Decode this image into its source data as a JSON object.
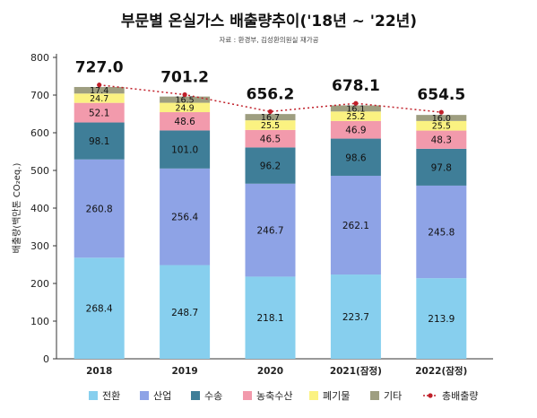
{
  "chart_data": {
    "type": "bar",
    "stacked": true,
    "title": "부문별 온실가스 배출량추이('18년 ~ '22년)",
    "source": "자료 : 환경부, 김성환의원실 재가공",
    "ylabel": "배출량(백만톤 CO₂eq.)",
    "xlabel": "",
    "ylim": [
      0,
      800
    ],
    "yticks": [
      0,
      100,
      200,
      300,
      400,
      500,
      600,
      700,
      800
    ],
    "grid": false,
    "legend_position": "bottom",
    "categories": [
      "2018",
      "2019",
      "2020",
      "2021(잠정)",
      "2022(잠정)"
    ],
    "series": [
      {
        "name": "전환",
        "color": "#87cfee",
        "values": [
          268.4,
          248.7,
          218.1,
          223.7,
          213.9
        ]
      },
      {
        "name": "산업",
        "color": "#8ea3e6",
        "values": [
          260.8,
          256.4,
          246.7,
          262.1,
          245.8
        ]
      },
      {
        "name": "수송",
        "color": "#3f7e98",
        "values": [
          98.1,
          101.0,
          96.2,
          98.6,
          97.8
        ]
      },
      {
        "name": "농축수산",
        "color": "#f29aac",
        "values": [
          52.1,
          48.6,
          46.5,
          46.9,
          48.3
        ]
      },
      {
        "name": "폐기물",
        "color": "#fbf281",
        "values": [
          24.7,
          24.9,
          25.5,
          25.2,
          25.5
        ]
      },
      {
        "name": "기타",
        "color": "#9e9e80",
        "values": [
          17.4,
          16.5,
          16.7,
          16.1,
          16.0
        ]
      }
    ],
    "value_labels": [
      [
        "268.4",
        "260.8",
        "98.1",
        "52.1",
        "24.7",
        "17.4"
      ],
      [
        "248.7",
        "256.4",
        "101.0",
        "48.6",
        "24.9",
        "16.5"
      ],
      [
        "218.1",
        "246.7",
        "96.2",
        "46.5",
        "25.5",
        "16.7"
      ],
      [
        "223.7",
        "262.1",
        "98.6",
        "46.9",
        "25.2",
        "16.1"
      ],
      [
        "213.9",
        "245.8",
        "97.8",
        "48.3",
        "25.5",
        "16.0"
      ]
    ],
    "total_line": {
      "name": "총배출량",
      "color": "#c0202a",
      "values": [
        727.0,
        701.2,
        656.2,
        678.1,
        654.5
      ],
      "labels": [
        "727.0",
        "701.2",
        "656.2",
        "678.1",
        "654.5"
      ]
    }
  }
}
